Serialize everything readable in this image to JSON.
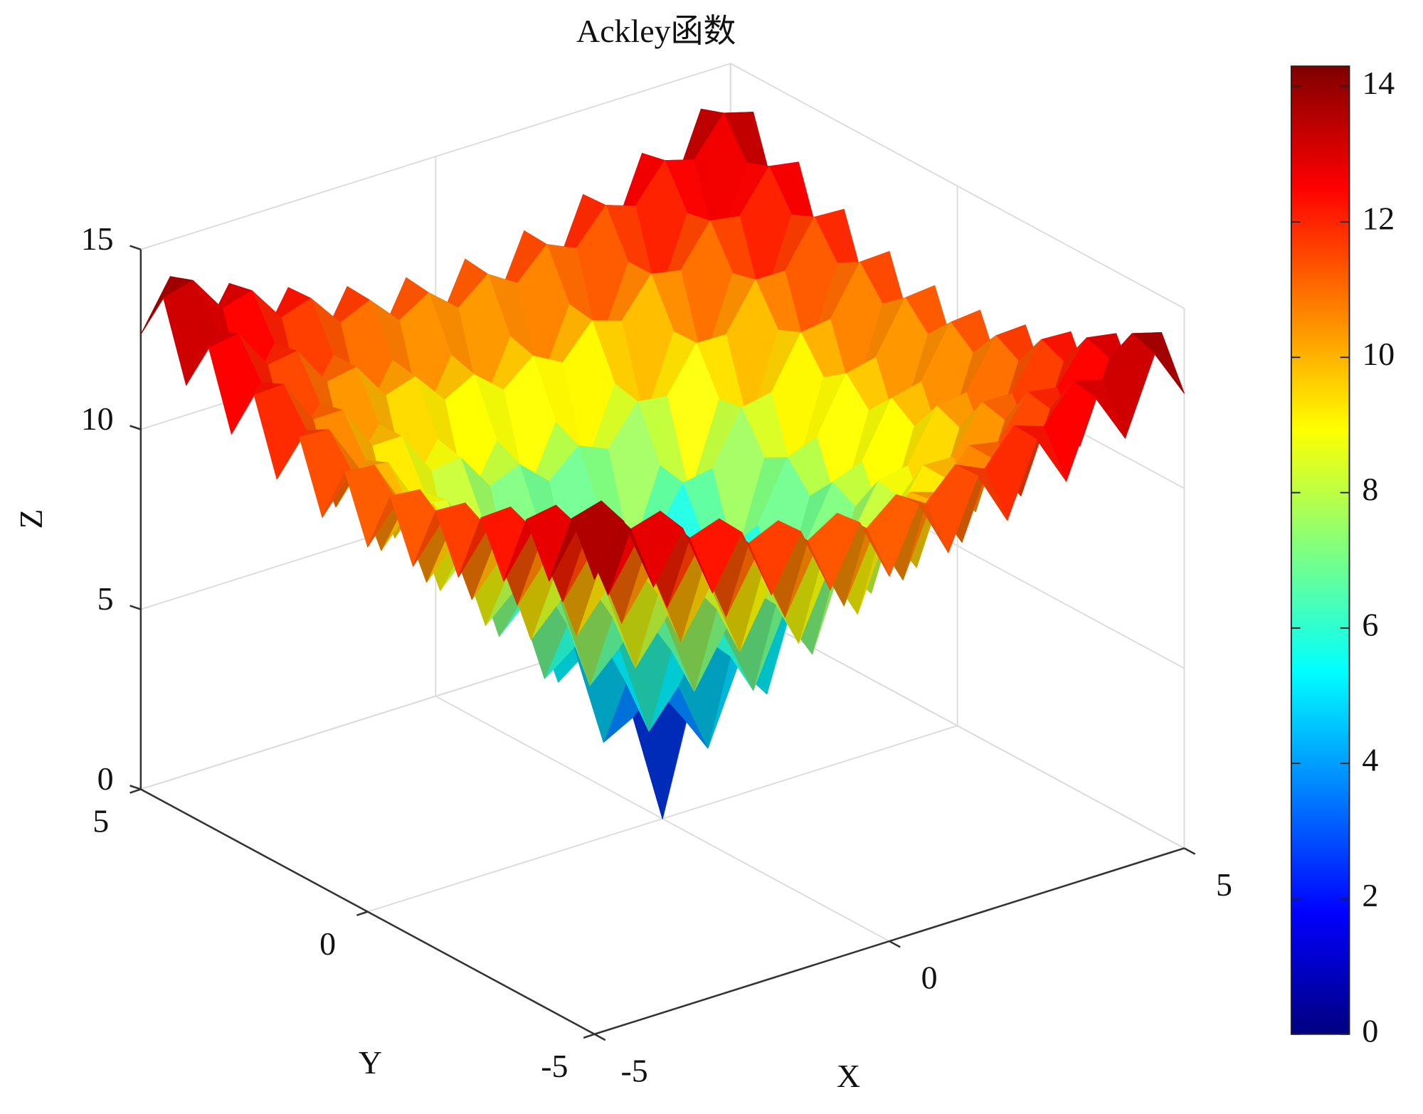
{
  "chart_data": {
    "type": "surface",
    "title": "Ackley函数",
    "x_label": "X",
    "y_label": "Y",
    "z_label": "Z",
    "x": [
      -5,
      -4.5,
      -4,
      -3.5,
      -3,
      -2.5,
      -2,
      -1.5,
      -1,
      -0.5,
      0,
      0.5,
      1,
      1.5,
      2,
      2.5,
      3,
      3.5,
      4,
      4.5,
      5
    ],
    "y": [
      -5,
      -4.5,
      -4,
      -3.5,
      -3,
      -2.5,
      -2,
      -1.5,
      -1,
      -0.5,
      0,
      0.5,
      1,
      1.5,
      2,
      2.5,
      3,
      3.5,
      4,
      4.5,
      5
    ],
    "z": [
      [
        12.64,
        13.99,
        11.91,
        13.28,
        11.23,
        12.65,
        10.66,
        12.16,
        10.28,
        11.89,
        10.14,
        11.89,
        10.28,
        12.16,
        10.66,
        12.65,
        11.23,
        13.28,
        11.91,
        13.99,
        12.64
      ],
      [
        13.99,
        14.22,
        13.18,
        13.42,
        12.41,
        12.69,
        11.75,
        12.12,
        11.3,
        11.81,
        11.13,
        11.81,
        11.3,
        12.12,
        11.75,
        12.69,
        12.41,
        13.42,
        13.18,
        14.22,
        13.99
      ],
      [
        11.91,
        13.18,
        11.01,
        12.29,
        10.14,
        11.45,
        9.37,
        10.79,
        8.84,
        10.41,
        8.64,
        10.41,
        8.84,
        10.79,
        9.37,
        11.45,
        10.14,
        12.29,
        11.01,
        13.18,
        11.91
      ],
      [
        13.28,
        13.42,
        12.29,
        12.42,
        11.3,
        11.46,
        10.41,
        10.68,
        9.77,
        10.22,
        9.53,
        10.22,
        9.77,
        10.68,
        10.41,
        11.46,
        11.3,
        12.42,
        12.29,
        13.42,
        13.28
      ],
      [
        11.23,
        12.41,
        10.14,
        11.3,
        9.02,
        10.2,
        7.99,
        9.27,
        7.21,
        8.71,
        6.92,
        8.71,
        7.21,
        9.27,
        7.99,
        10.2,
        9.02,
        11.3,
        10.14,
        12.41,
        11.23
      ],
      [
        12.65,
        12.69,
        11.45,
        11.46,
        10.2,
        10.22,
        9.0,
        9.11,
        8.05,
        8.4,
        7.67,
        8.4,
        8.05,
        9.11,
        9.0,
        10.22,
        10.2,
        11.46,
        11.45,
        12.69,
        12.65
      ],
      [
        10.66,
        11.75,
        9.37,
        10.41,
        7.99,
        9.0,
        6.59,
        7.67,
        5.42,
        6.78,
        4.93,
        6.78,
        5.42,
        7.67,
        6.59,
        9.0,
        7.99,
        10.41,
        9.37,
        11.75,
        10.66
      ],
      [
        12.16,
        12.12,
        10.79,
        10.68,
        9.27,
        9.11,
        7.67,
        7.53,
        6.22,
        6.36,
        5.54,
        6.36,
        6.22,
        7.53,
        7.67,
        9.11,
        9.27,
        10.68,
        10.79,
        12.12,
        12.16
      ],
      [
        10.28,
        11.3,
        8.84,
        9.77,
        7.21,
        8.05,
        5.42,
        6.22,
        3.63,
        4.64,
        2.64,
        4.64,
        3.63,
        6.22,
        5.42,
        8.05,
        7.21,
        9.77,
        8.84,
        11.3,
        10.28
      ],
      [
        11.89,
        11.81,
        10.41,
        10.22,
        8.71,
        8.4,
        6.78,
        6.36,
        4.64,
        4.25,
        3.08,
        4.25,
        4.64,
        6.36,
        6.78,
        8.4,
        8.71,
        10.22,
        10.41,
        11.81,
        11.89
      ],
      [
        10.14,
        11.13,
        8.64,
        9.53,
        6.92,
        7.67,
        4.93,
        5.54,
        2.64,
        3.08,
        0,
        3.08,
        2.64,
        5.54,
        4.93,
        7.67,
        6.92,
        9.53,
        8.64,
        11.13,
        10.14
      ],
      [
        11.89,
        11.81,
        10.41,
        10.22,
        8.71,
        8.4,
        6.78,
        6.36,
        4.64,
        4.25,
        3.08,
        4.25,
        4.64,
        6.36,
        6.78,
        8.4,
        8.71,
        10.22,
        10.41,
        11.81,
        11.89
      ],
      [
        10.28,
        11.3,
        8.84,
        9.77,
        7.21,
        8.05,
        5.42,
        6.22,
        3.63,
        4.64,
        2.64,
        4.64,
        3.63,
        6.22,
        5.42,
        8.05,
        7.21,
        9.77,
        8.84,
        11.3,
        10.28
      ],
      [
        12.16,
        12.12,
        10.79,
        10.68,
        9.27,
        9.11,
        7.67,
        7.53,
        6.22,
        6.36,
        5.54,
        6.36,
        6.22,
        7.53,
        7.67,
        9.11,
        9.27,
        10.68,
        10.79,
        12.12,
        12.16
      ],
      [
        10.66,
        11.75,
        9.37,
        10.41,
        7.99,
        9.0,
        6.59,
        7.67,
        5.42,
        6.78,
        4.93,
        6.78,
        5.42,
        7.67,
        6.59,
        9.0,
        7.99,
        10.41,
        9.37,
        11.75,
        10.66
      ],
      [
        12.65,
        12.69,
        11.45,
        11.46,
        10.2,
        10.22,
        9.0,
        9.11,
        8.05,
        8.4,
        7.67,
        8.4,
        8.05,
        9.11,
        9.0,
        10.22,
        10.2,
        11.46,
        11.45,
        12.69,
        12.65
      ],
      [
        11.23,
        12.41,
        10.14,
        11.3,
        9.02,
        10.2,
        7.99,
        9.27,
        7.21,
        8.71,
        6.92,
        8.71,
        7.21,
        9.27,
        7.99,
        10.2,
        9.02,
        11.3,
        10.14,
        12.41,
        11.23
      ],
      [
        13.28,
        13.42,
        12.29,
        12.42,
        11.3,
        11.46,
        10.41,
        10.68,
        9.77,
        10.22,
        9.53,
        10.22,
        9.77,
        10.68,
        10.41,
        11.46,
        11.3,
        12.42,
        12.29,
        13.42,
        13.28
      ],
      [
        11.91,
        13.18,
        11.01,
        12.29,
        10.14,
        11.45,
        9.37,
        10.79,
        8.84,
        10.41,
        8.64,
        10.41,
        8.84,
        10.79,
        9.37,
        11.45,
        10.14,
        12.29,
        11.01,
        13.18,
        11.91
      ],
      [
        13.99,
        14.22,
        13.18,
        13.42,
        12.41,
        12.69,
        11.75,
        12.12,
        11.3,
        11.81,
        11.13,
        11.81,
        11.3,
        12.12,
        11.75,
        12.69,
        12.41,
        13.42,
        13.18,
        14.22,
        13.99
      ],
      [
        12.64,
        13.99,
        11.91,
        13.28,
        11.23,
        12.65,
        10.66,
        12.16,
        10.28,
        11.89,
        10.14,
        11.89,
        10.28,
        12.16,
        10.66,
        12.65,
        11.23,
        13.28,
        11.91,
        13.99,
        12.64
      ]
    ],
    "xlim": [
      -5,
      5
    ],
    "ylim": [
      -5,
      5
    ],
    "zlim": [
      0,
      15
    ],
    "xticks": [
      -5,
      0,
      5
    ],
    "yticks": [
      -5,
      0,
      5
    ],
    "zticks": [
      0,
      5,
      10,
      15
    ],
    "colormap": "jet",
    "clim": [
      0,
      14.3
    ],
    "colorbar_ticks": [
      0,
      2,
      4,
      6,
      8,
      10,
      12,
      14
    ],
    "grid": true
  }
}
